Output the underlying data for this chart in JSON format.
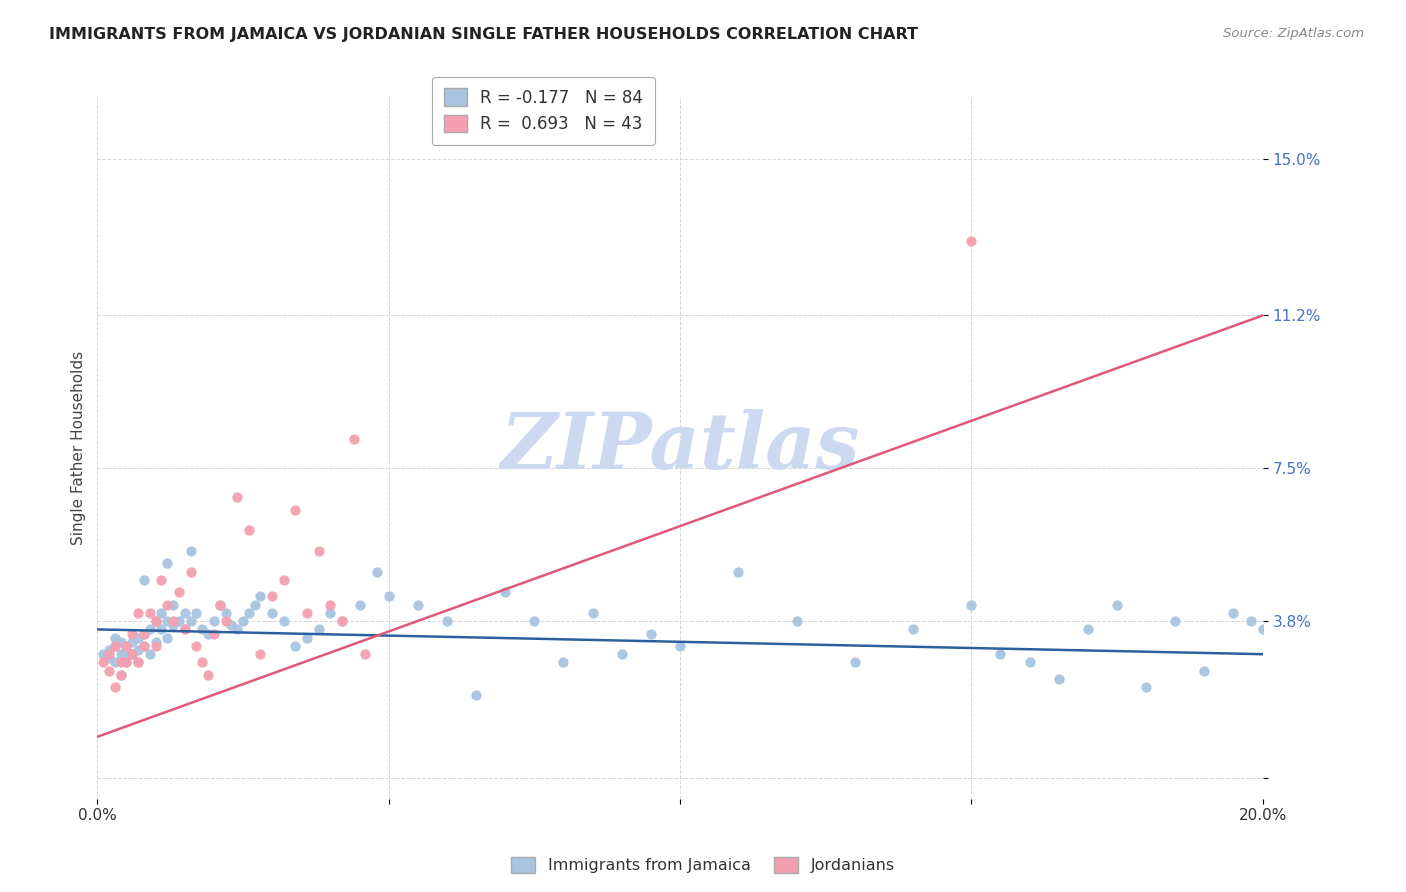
{
  "title": "IMMIGRANTS FROM JAMAICA VS JORDANIAN SINGLE FATHER HOUSEHOLDS CORRELATION CHART",
  "source": "Source: ZipAtlas.com",
  "ylabel": "Single Father Households",
  "xlim": [
    0.0,
    0.2
  ],
  "ylim": [
    -0.005,
    0.165
  ],
  "ytick_values": [
    0.0,
    0.038,
    0.075,
    0.112,
    0.15
  ],
  "ytick_labels": [
    "",
    "3.8%",
    "7.5%",
    "11.2%",
    "15.0%"
  ],
  "xtick_values": [
    0.0,
    0.05,
    0.1,
    0.15,
    0.2
  ],
  "xtick_labels": [
    "0.0%",
    "",
    "",
    "",
    "20.0%"
  ],
  "jamaica_color": "#a8c4e0",
  "jordan_color": "#f4a0b0",
  "jamaica_line_color": "#2c5f9e",
  "jordan_line_color": "#e05878",
  "watermark_text": "ZIPatlas",
  "watermark_color": "#ccd9f0",
  "legend_r1": "R = -0.177",
  "legend_n1": "N = 84",
  "legend_r2": "R =  0.693",
  "legend_n2": "N = 43",
  "legend_label1": "Immigrants from Jamaica",
  "legend_label2": "Jordanians",
  "jamaica_x": [
    0.001,
    0.002,
    0.002,
    0.003,
    0.003,
    0.003,
    0.004,
    0.004,
    0.005,
    0.005,
    0.005,
    0.006,
    0.006,
    0.007,
    0.007,
    0.007,
    0.008,
    0.008,
    0.009,
    0.009,
    0.01,
    0.01,
    0.011,
    0.011,
    0.012,
    0.012,
    0.013,
    0.013,
    0.014,
    0.015,
    0.015,
    0.016,
    0.017,
    0.018,
    0.019,
    0.02,
    0.021,
    0.022,
    0.023,
    0.024,
    0.025,
    0.026,
    0.027,
    0.028,
    0.03,
    0.032,
    0.034,
    0.036,
    0.038,
    0.04,
    0.042,
    0.045,
    0.048,
    0.05,
    0.055,
    0.06,
    0.065,
    0.07,
    0.075,
    0.08,
    0.085,
    0.09,
    0.095,
    0.1,
    0.11,
    0.12,
    0.13,
    0.14,
    0.15,
    0.155,
    0.16,
    0.165,
    0.17,
    0.175,
    0.18,
    0.185,
    0.19,
    0.195,
    0.198,
    0.2,
    0.004,
    0.008,
    0.012,
    0.016
  ],
  "jamaica_y": [
    0.03,
    0.031,
    0.029,
    0.032,
    0.028,
    0.034,
    0.03,
    0.033,
    0.029,
    0.031,
    0.028,
    0.033,
    0.03,
    0.034,
    0.031,
    0.028,
    0.035,
    0.032,
    0.036,
    0.03,
    0.038,
    0.033,
    0.04,
    0.036,
    0.038,
    0.034,
    0.042,
    0.037,
    0.038,
    0.036,
    0.04,
    0.038,
    0.04,
    0.036,
    0.035,
    0.038,
    0.042,
    0.04,
    0.037,
    0.036,
    0.038,
    0.04,
    0.042,
    0.044,
    0.04,
    0.038,
    0.032,
    0.034,
    0.036,
    0.04,
    0.038,
    0.042,
    0.05,
    0.044,
    0.042,
    0.038,
    0.02,
    0.045,
    0.038,
    0.028,
    0.04,
    0.03,
    0.035,
    0.032,
    0.05,
    0.038,
    0.028,
    0.036,
    0.042,
    0.03,
    0.028,
    0.024,
    0.036,
    0.042,
    0.022,
    0.038,
    0.026,
    0.04,
    0.038,
    0.036,
    0.025,
    0.048,
    0.052,
    0.055
  ],
  "jordan_x": [
    0.001,
    0.002,
    0.002,
    0.003,
    0.003,
    0.004,
    0.004,
    0.005,
    0.005,
    0.006,
    0.006,
    0.007,
    0.007,
    0.008,
    0.008,
    0.009,
    0.01,
    0.01,
    0.011,
    0.012,
    0.013,
    0.014,
    0.015,
    0.016,
    0.017,
    0.018,
    0.019,
    0.02,
    0.021,
    0.022,
    0.024,
    0.026,
    0.028,
    0.03,
    0.032,
    0.034,
    0.036,
    0.038,
    0.04,
    0.042,
    0.044,
    0.046,
    0.15
  ],
  "jordan_y": [
    0.028,
    0.026,
    0.03,
    0.022,
    0.032,
    0.025,
    0.028,
    0.032,
    0.028,
    0.035,
    0.03,
    0.04,
    0.028,
    0.035,
    0.032,
    0.04,
    0.038,
    0.032,
    0.048,
    0.042,
    0.038,
    0.045,
    0.036,
    0.05,
    0.032,
    0.028,
    0.025,
    0.035,
    0.042,
    0.038,
    0.068,
    0.06,
    0.03,
    0.044,
    0.048,
    0.065,
    0.04,
    0.055,
    0.042,
    0.038,
    0.082,
    0.03,
    0.13
  ],
  "jamaica_trend_x": [
    0.0,
    0.2
  ],
  "jamaica_trend_y": [
    0.036,
    0.03
  ],
  "jordan_trend_x": [
    0.0,
    0.2
  ],
  "jordan_trend_y": [
    0.01,
    0.112
  ]
}
